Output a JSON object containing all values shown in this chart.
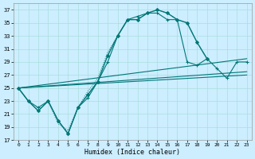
{
  "xlabel": "Humidex (Indice chaleur)",
  "bg_color": "#cceeff",
  "grid_color": "#aadddd",
  "line_color": "#007777",
  "xlim": [
    -0.5,
    23.5
  ],
  "ylim": [
    17,
    38
  ],
  "yticks": [
    17,
    19,
    21,
    23,
    25,
    27,
    29,
    31,
    33,
    35,
    37
  ],
  "xticks": [
    0,
    1,
    2,
    3,
    4,
    5,
    6,
    7,
    8,
    9,
    10,
    11,
    12,
    13,
    14,
    15,
    16,
    17,
    18,
    19,
    20,
    21,
    22,
    23
  ],
  "curves": [
    {
      "x": [
        0,
        1,
        2,
        3,
        4,
        5,
        6,
        7,
        8,
        9,
        10,
        11,
        12,
        13,
        14,
        15,
        16,
        17,
        18,
        19
      ],
      "y": [
        25,
        23,
        21.5,
        23,
        20,
        18,
        22,
        24,
        26,
        30,
        33,
        35.5,
        35.5,
        36.5,
        37,
        36.5,
        35.5,
        35,
        32,
        29.5
      ],
      "marker": "D",
      "markersize": 2.0,
      "linewidth": 1.0
    },
    {
      "x": [
        0,
        1,
        2,
        3,
        4,
        5,
        6,
        7,
        8,
        9,
        10,
        11,
        12,
        13,
        14,
        15,
        16,
        17,
        18,
        19
      ],
      "y": [
        25,
        23,
        21.5,
        23,
        19.5,
        18.5,
        22,
        24.5,
        26.5,
        30.5,
        33,
        35.5,
        35.5,
        36.5,
        37,
        36.5,
        35.5,
        35,
        32,
        29.5
      ],
      "marker": null,
      "markersize": 0,
      "linewidth": 0.7,
      "linestyle": "dotted"
    },
    {
      "x": [
        0,
        1,
        2,
        3,
        4,
        5,
        6,
        7,
        8,
        9,
        10,
        11,
        12,
        13,
        14,
        15,
        16,
        17,
        18,
        19,
        20,
        21,
        22,
        23
      ],
      "y": [
        25,
        23,
        22,
        23,
        20,
        18,
        22,
        23.5,
        26,
        29,
        33,
        35.5,
        36,
        36.5,
        36.5,
        35.5,
        35.5,
        29,
        28.5,
        29.5,
        28,
        26.5,
        29,
        29
      ],
      "marker": "+",
      "markersize": 3.5,
      "linewidth": 0.8,
      "linestyle": "solid"
    },
    {
      "x": [
        0,
        23
      ],
      "y": [
        25,
        27.0
      ],
      "marker": null,
      "markersize": 0,
      "linewidth": 0.8,
      "linestyle": "solid"
    },
    {
      "x": [
        0,
        23
      ],
      "y": [
        25,
        27.5
      ],
      "marker": null,
      "markersize": 0,
      "linewidth": 0.8,
      "linestyle": "solid"
    },
    {
      "x": [
        0,
        23
      ],
      "y": [
        25,
        29.5
      ],
      "marker": null,
      "markersize": 0,
      "linewidth": 0.8,
      "linestyle": "solid"
    }
  ]
}
